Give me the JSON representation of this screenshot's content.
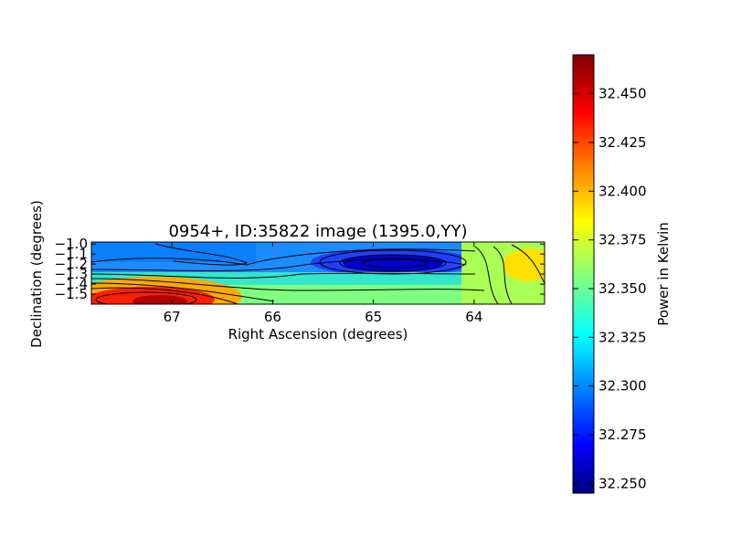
{
  "chart_data": {
    "type": "heatmap",
    "title": "0954+, ID:35822 image (1395.0,YY)",
    "xlabel": "Right Ascension (degrees)",
    "ylabel": "Declination (degrees)",
    "xlim": [
      67.8,
      63.3
    ],
    "ylim": [
      -1.6,
      -0.98
    ],
    "x_ticks": [
      67,
      66,
      65,
      64
    ],
    "y_ticks": [
      -1.0,
      -1.1,
      -1.2,
      -1.3,
      -1.4,
      -1.5
    ],
    "x_tick_labels": [
      "67",
      "66",
      "65",
      "64"
    ],
    "y_tick_labels": [
      "−1.0",
      "−1.1",
      "−1.2",
      "−1.3",
      "−1.4",
      "−1.5"
    ],
    "colormap": "jet",
    "contours": "black contour lines overlaid",
    "colorbar": {
      "label": "Power in Kelvin",
      "range": [
        32.245,
        32.47
      ],
      "ticks": [
        32.25,
        32.275,
        32.3,
        32.325,
        32.35,
        32.375,
        32.4,
        32.425,
        32.45
      ],
      "tick_labels": [
        "32.250",
        "32.275",
        "32.300",
        "32.325",
        "32.350",
        "32.375",
        "32.400",
        "32.425",
        "32.450"
      ]
    },
    "features": [
      {
        "ra": 67.1,
        "dec": -1.52,
        "value": 32.46
      },
      {
        "ra": 64.8,
        "dec": -1.17,
        "value": 32.255
      },
      {
        "ra": 63.5,
        "dec": -1.2,
        "value": 32.39
      },
      {
        "ra": 67.3,
        "dec": -1.03,
        "value": 32.3
      }
    ]
  }
}
